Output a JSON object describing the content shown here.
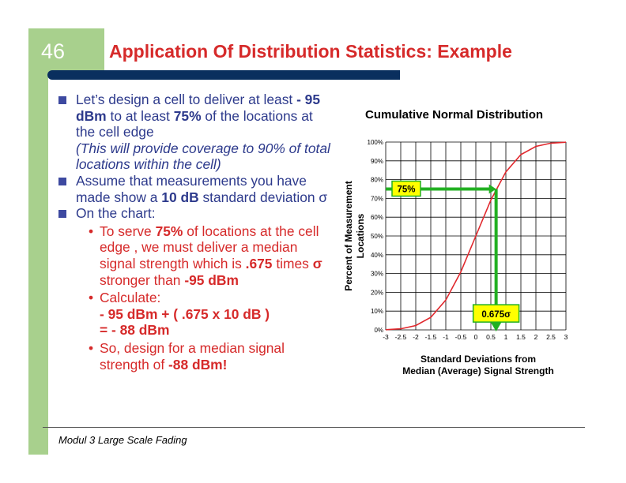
{
  "slide": {
    "number": "46",
    "title": "Application Of Distribution Statistics: Example",
    "footer": "Modul 3  Large Scale Fading"
  },
  "bullets": {
    "b1": {
      "t1": "Let’s design a cell to deliver at least ",
      "t2": "- 95 dBm",
      "t3": " to at least ",
      "t4": "75%",
      "t5": " of the locations at the cell edge",
      "t6": "(This will provide coverage to 90% of total locations within the cell)"
    },
    "b2": {
      "t1": "Assume that measurements you have made show a ",
      "t2": "10 dB",
      "t3": " standard deviation σ"
    },
    "b3": {
      "t1": "On the chart:"
    },
    "s1": {
      "t1": "To serve ",
      "t2": "75%",
      "t3": " of locations at the cell edge , we must deliver a median signal strength which is ",
      "t4": ".675",
      "t5": " times ",
      "t6": "σ",
      "t7": " stronger than ",
      "t8": "-95 dBm"
    },
    "s2": {
      "t1": "Calculate:",
      "t2": "- 95 dBm + ( .675 x 10 dB )",
      "t3": "= - 88 dBm"
    },
    "s3": {
      "t1": "So, design for a median signal strength of ",
      "t2": "-88 dBm!"
    }
  },
  "chart_data": {
    "type": "line",
    "title": "Cumulative Normal Distribution",
    "xlabel_line1": "Standard Deviations from",
    "xlabel_line2": "Median (Average) Signal Strength",
    "ylabel_line1": "Percent of Measurement",
    "ylabel_line2": "Locations",
    "x_ticks": [
      "-3",
      "-2.5",
      "-2",
      "-1.5",
      "-1",
      "-0.5",
      "0",
      "0.5",
      "1",
      "1.5",
      "2",
      "2.5",
      "3"
    ],
    "y_ticks": [
      "0%",
      "10%",
      "20%",
      "30%",
      "40%",
      "50%",
      "60%",
      "70%",
      "80%",
      "90%",
      "100%"
    ],
    "xlim": [
      -3,
      3
    ],
    "ylim": [
      0,
      100
    ],
    "grid": true,
    "series": [
      {
        "color": "#e0282d",
        "x": [
          -3,
          -2.5,
          -2,
          -1.5,
          -1,
          -0.5,
          0,
          0.5,
          1,
          1.5,
          2,
          2.5,
          3
        ],
        "y": [
          0.1,
          0.6,
          2.3,
          6.7,
          15.9,
          30.9,
          50,
          69.1,
          84.1,
          93.3,
          97.7,
          99.4,
          99.9
        ]
      }
    ],
    "annotations": {
      "percent_label": "75%",
      "percent_value": 75,
      "sigma_label": "0.675σ",
      "sigma_value": 0.675,
      "label_bg": "#ffff00",
      "arrow_color": "#22b022"
    }
  }
}
